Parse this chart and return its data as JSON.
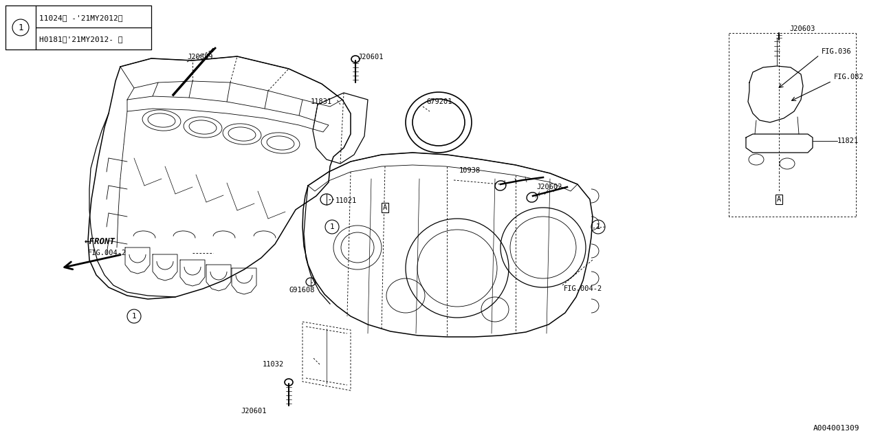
{
  "bg_color": "#ffffff",
  "fig_width": 12.8,
  "fig_height": 6.4,
  "part_id": "A004001309",
  "legend_row1": "11024＜ -’21MY2012＞",
  "legend_row2": "H0181＜’21MY2012- ＞",
  "font_size_label": 7.5,
  "font_size_small": 7
}
